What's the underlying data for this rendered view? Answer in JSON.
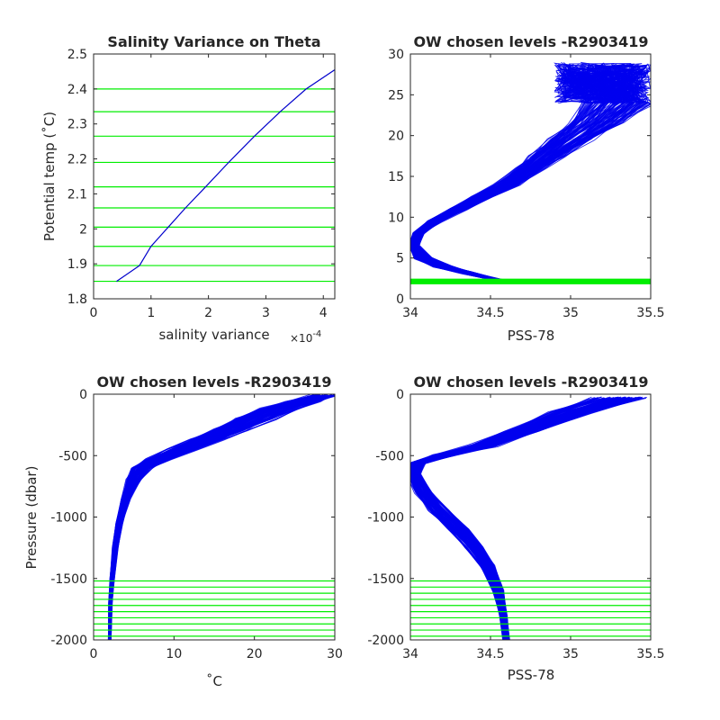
{
  "chart_data": [
    {
      "type": "line",
      "title": "Salinity Variance on Theta",
      "xlabel": "salinity variance",
      "x_exponent_label": "×10",
      "x_exponent_power": "-4",
      "ylabel": "Potential temp (˚C)",
      "xlim": [
        0,
        4.2
      ],
      "ylim": [
        1.8,
        2.5
      ],
      "xticks": [
        0,
        1,
        2,
        3,
        4
      ],
      "yticks": [
        1.8,
        1.9,
        2.0,
        2.1,
        2.2,
        2.3,
        2.4,
        2.5
      ],
      "xtick_labels": [
        "0",
        "1",
        "2",
        "3",
        "4"
      ],
      "ytick_labels": [
        "1.8",
        "1.9",
        "2",
        "2.1",
        "2.2",
        "2.3",
        "2.4",
        "2.5"
      ],
      "series": [
        {
          "color": "#0000cc",
          "x": [
            0.4,
            0.8,
            1.0,
            1.3,
            1.6,
            1.95,
            2.35,
            2.8,
            3.25,
            3.7,
            4.2
          ],
          "y": [
            1.85,
            1.895,
            1.95,
            2.005,
            2.06,
            2.12,
            2.19,
            2.265,
            2.335,
            2.4,
            2.455
          ]
        }
      ],
      "hlines": {
        "color": "#00ee00",
        "values": [
          1.85,
          1.895,
          1.95,
          2.005,
          2.06,
          2.12,
          2.19,
          2.265,
          2.335,
          2.4
        ]
      }
    },
    {
      "type": "line",
      "title": "OW chosen levels -R2903419",
      "xlabel": "PSS-78",
      "ylabel": "",
      "xlim": [
        34,
        35.5
      ],
      "ylim": [
        0,
        30
      ],
      "xticks": [
        34,
        34.5,
        35,
        35.5
      ],
      "yticks": [
        0,
        5,
        10,
        15,
        20,
        25,
        30
      ],
      "xtick_labels": [
        "34",
        "34.5",
        "35",
        "35.5"
      ],
      "ytick_labels": [
        "0",
        "5",
        "10",
        "15",
        "20",
        "25",
        "30"
      ],
      "profile_band": {
        "color": "#0000ee",
        "count": 120,
        "x": [
          34.55,
          34.35,
          34.2,
          34.08,
          34.02,
          34.05,
          34.15,
          34.3,
          34.45,
          34.6,
          34.75,
          34.85,
          35.0,
          35.15,
          35.3
        ],
        "y": [
          2.3,
          3.2,
          4.0,
          5.0,
          6.5,
          8.0,
          9.5,
          11.0,
          12.5,
          14.0,
          16.0,
          17.5,
          19.5,
          21.5,
          24.0
        ],
        "x_spread": [
          0.02,
          0.04,
          0.05,
          0.05,
          0.03,
          0.03,
          0.04,
          0.05,
          0.06,
          0.07,
          0.08,
          0.1,
          0.12,
          0.15,
          0.2
        ],
        "tail_x_range": [
          34.9,
          35.5
        ],
        "tail_y_range": [
          24,
          29
        ]
      },
      "hlines": {
        "color": "#00ee00",
        "values": [
          1.85,
          1.895,
          1.95,
          2.005,
          2.06,
          2.12,
          2.19,
          2.265,
          2.335,
          2.4
        ]
      }
    },
    {
      "type": "line",
      "title": "OW chosen levels -R2903419",
      "xlabel": "˚C",
      "ylabel": "Pressure (dbar)",
      "xlim": [
        0,
        30
      ],
      "ylim": [
        -2000,
        0
      ],
      "xticks": [
        0,
        10,
        20,
        30
      ],
      "yticks": [
        -2000,
        -1500,
        -1000,
        -500,
        0
      ],
      "xtick_labels": [
        "0",
        "10",
        "20",
        "30"
      ],
      "ytick_labels": [
        "-2000",
        "-1500",
        "-1000",
        "-500",
        "0"
      ],
      "profile_band": {
        "color": "#0000ee",
        "count": 120,
        "x": [
          2.0,
          2.1,
          2.3,
          2.7,
          3.2,
          4.0,
          5.0,
          6.0,
          8.0,
          11.0,
          14.0,
          17.0,
          20.0,
          23.0,
          26.0,
          28.5
        ],
        "y": [
          -2000,
          -1700,
          -1500,
          -1250,
          -1050,
          -850,
          -700,
          -600,
          -530,
          -450,
          -370,
          -290,
          -200,
          -120,
          -60,
          -10
        ],
        "x_spread": [
          0.15,
          0.2,
          0.25,
          0.3,
          0.35,
          0.5,
          0.8,
          1.2,
          1.4,
          1.6,
          1.8,
          2.0,
          2.2,
          2.2,
          2.0,
          1.5
        ]
      },
      "hlines": {
        "color": "#00ee00",
        "values": [
          -1520,
          -1570,
          -1620,
          -1670,
          -1720,
          -1770,
          -1820,
          -1870,
          -1920,
          -1970
        ]
      }
    },
    {
      "type": "line",
      "title": "OW chosen levels -R2903419",
      "xlabel": "PSS-78",
      "ylabel": "",
      "xlim": [
        34,
        35.5
      ],
      "ylim": [
        -2000,
        0
      ],
      "xticks": [
        34,
        34.5,
        35,
        35.5
      ],
      "yticks": [
        -2000,
        -1500,
        -1000,
        -500,
        0
      ],
      "xtick_labels": [
        "34",
        "34.5",
        "35",
        "35.5"
      ],
      "ytick_labels": [
        "-2000",
        "-1500",
        "-1000",
        "-500",
        "0"
      ],
      "profile_band": {
        "color": "#0000ee",
        "count": 120,
        "x": [
          34.6,
          34.58,
          34.55,
          34.48,
          34.4,
          34.3,
          34.18,
          34.08,
          34.02,
          34.05,
          34.2,
          34.45,
          34.7,
          35.0,
          35.3
        ],
        "y": [
          -2000,
          -1800,
          -1600,
          -1400,
          -1250,
          -1100,
          -950,
          -800,
          -650,
          -560,
          -500,
          -420,
          -300,
          -150,
          -30
        ],
        "x_spread": [
          0.02,
          0.02,
          0.03,
          0.04,
          0.05,
          0.06,
          0.06,
          0.05,
          0.04,
          0.04,
          0.06,
          0.08,
          0.1,
          0.12,
          0.15
        ]
      },
      "hlines": {
        "color": "#00ee00",
        "values": [
          -1520,
          -1570,
          -1620,
          -1670,
          -1720,
          -1770,
          -1820,
          -1870,
          -1920,
          -1970
        ]
      }
    }
  ]
}
